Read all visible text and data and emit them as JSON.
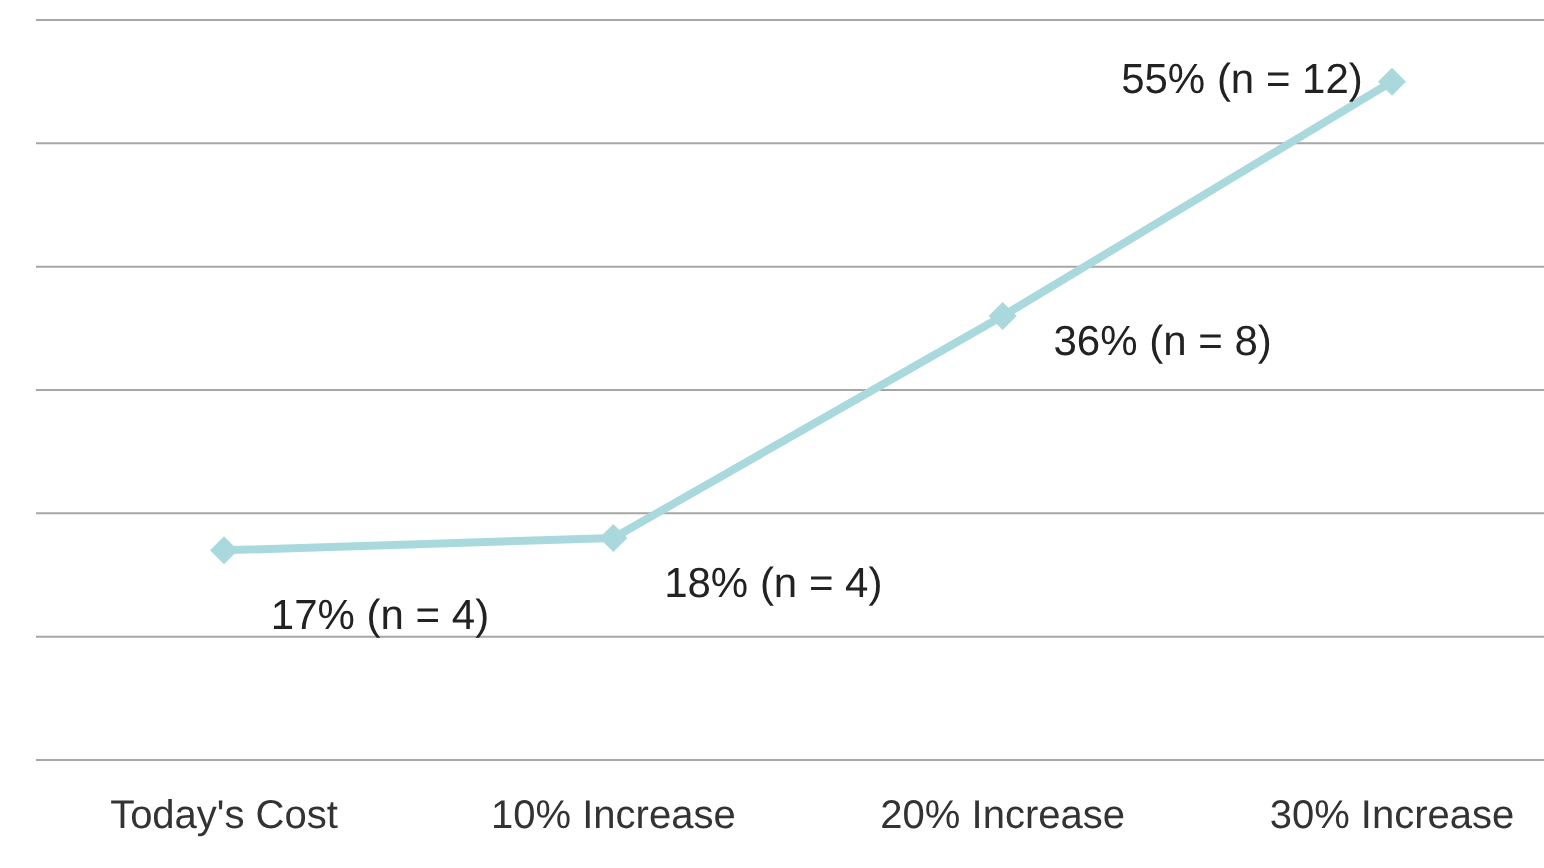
{
  "chart_data": {
    "type": "line",
    "categories": [
      "Today's Cost",
      "10% Increase",
      "20% Increase",
      "30% Increase"
    ],
    "series": [
      {
        "color": "#a9d9dc",
        "values": [
          17,
          18,
          36,
          55
        ],
        "value_labels": [
          "17% (n = 4)",
          "18% (n = 4)",
          "36% (n = 8)",
          "55% (n = 12)"
        ]
      }
    ],
    "ylim": [
      0,
      60
    ],
    "yticks": [
      {
        "value": 0,
        "label": null
      },
      {
        "value": 10,
        "label": null
      },
      {
        "value": 20,
        "label": null
      },
      {
        "value": 30,
        "label": null
      },
      {
        "value": 40,
        "label": null
      },
      {
        "value": 50,
        "label": null
      },
      {
        "value": 60,
        "label": null
      }
    ],
    "grid": "y",
    "legend": false,
    "marker": "diamond",
    "line_style": "solid",
    "tick_labels": "x"
  }
}
